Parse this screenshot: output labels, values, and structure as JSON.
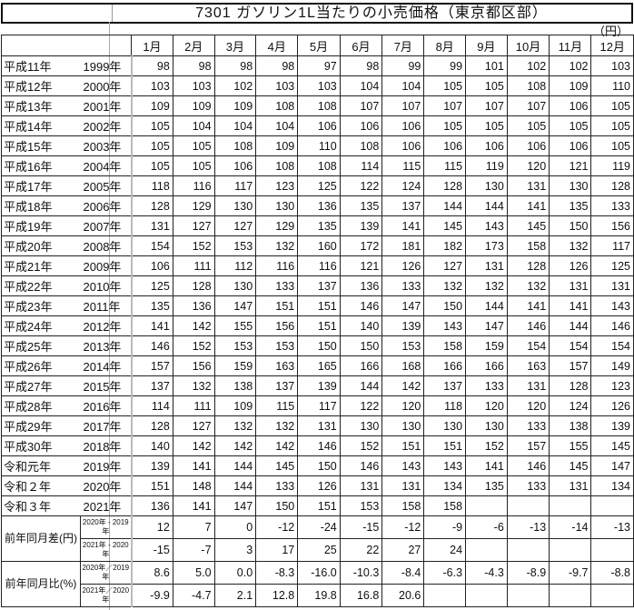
{
  "title": "7301 ガソリン1L当たりの小売価格（東京都区部）",
  "unit": "（円）",
  "months": [
    "1月",
    "2月",
    "3月",
    "4月",
    "5月",
    "6月",
    "7月",
    "8月",
    "9月",
    "10月",
    "11月",
    "12月"
  ],
  "rows": [
    {
      "era": "平成11年",
      "year": "1999年",
      "values": [
        98,
        98,
        98,
        98,
        97,
        98,
        99,
        99,
        101,
        102,
        102,
        103
      ]
    },
    {
      "era": "平成12年",
      "year": "2000年",
      "values": [
        103,
        103,
        102,
        103,
        103,
        104,
        104,
        105,
        105,
        108,
        109,
        110
      ]
    },
    {
      "era": "平成13年",
      "year": "2001年",
      "values": [
        109,
        109,
        109,
        108,
        108,
        107,
        107,
        107,
        107,
        107,
        106,
        105
      ]
    },
    {
      "era": "平成14年",
      "year": "2002年",
      "values": [
        105,
        104,
        104,
        104,
        106,
        106,
        106,
        105,
        105,
        105,
        105,
        105
      ]
    },
    {
      "era": "平成15年",
      "year": "2003年",
      "values": [
        105,
        105,
        108,
        109,
        110,
        108,
        106,
        106,
        106,
        106,
        106,
        105
      ]
    },
    {
      "era": "平成16年",
      "year": "2004年",
      "values": [
        105,
        105,
        106,
        108,
        108,
        114,
        115,
        115,
        119,
        120,
        121,
        119
      ]
    },
    {
      "era": "平成17年",
      "year": "2005年",
      "values": [
        118,
        116,
        117,
        123,
        125,
        122,
        124,
        128,
        130,
        131,
        130,
        128
      ]
    },
    {
      "era": "平成18年",
      "year": "2006年",
      "values": [
        128,
        129,
        130,
        130,
        136,
        135,
        137,
        144,
        144,
        141,
        135,
        133
      ]
    },
    {
      "era": "平成19年",
      "year": "2007年",
      "values": [
        131,
        127,
        127,
        129,
        135,
        139,
        141,
        145,
        143,
        145,
        150,
        156
      ]
    },
    {
      "era": "平成20年",
      "year": "2008年",
      "values": [
        154,
        152,
        153,
        132,
        160,
        172,
        181,
        182,
        173,
        158,
        132,
        117
      ]
    },
    {
      "era": "平成21年",
      "year": "2009年",
      "values": [
        106,
        111,
        112,
        116,
        116,
        121,
        126,
        127,
        131,
        128,
        126,
        125
      ]
    },
    {
      "era": "平成22年",
      "year": "2010年",
      "values": [
        125,
        128,
        130,
        133,
        137,
        136,
        133,
        132,
        132,
        132,
        131,
        131
      ]
    },
    {
      "era": "平成23年",
      "year": "2011年",
      "values": [
        135,
        136,
        147,
        151,
        151,
        146,
        147,
        150,
        144,
        141,
        141,
        143
      ]
    },
    {
      "era": "平成24年",
      "year": "2012年",
      "values": [
        141,
        142,
        155,
        156,
        151,
        140,
        139,
        143,
        147,
        146,
        144,
        146
      ]
    },
    {
      "era": "平成25年",
      "year": "2013年",
      "values": [
        146,
        152,
        153,
        153,
        150,
        150,
        153,
        158,
        159,
        154,
        154,
        154
      ]
    },
    {
      "era": "平成26年",
      "year": "2014年",
      "values": [
        157,
        156,
        159,
        163,
        165,
        166,
        168,
        166,
        166,
        163,
        157,
        149
      ]
    },
    {
      "era": "平成27年",
      "year": "2015年",
      "values": [
        137,
        132,
        138,
        137,
        139,
        144,
        142,
        137,
        133,
        131,
        128,
        123
      ]
    },
    {
      "era": "平成28年",
      "year": "2016年",
      "values": [
        114,
        111,
        109,
        115,
        117,
        122,
        120,
        118,
        120,
        120,
        124,
        126
      ]
    },
    {
      "era": "平成29年",
      "year": "2017年",
      "values": [
        128,
        127,
        132,
        132,
        131,
        130,
        130,
        130,
        130,
        133,
        138,
        139
      ]
    },
    {
      "era": "平成30年",
      "year": "2018年",
      "values": [
        140,
        142,
        142,
        142,
        146,
        152,
        151,
        151,
        152,
        157,
        155,
        145
      ]
    },
    {
      "era": "令和元年",
      "year": "2019年",
      "values": [
        139,
        141,
        144,
        145,
        150,
        146,
        143,
        143,
        141,
        146,
        145,
        147
      ]
    },
    {
      "era": "令和２年",
      "year": "2020年",
      "values": [
        151,
        148,
        144,
        133,
        126,
        131,
        131,
        134,
        135,
        133,
        131,
        134
      ]
    },
    {
      "era": "令和３年",
      "year": "2021年",
      "values": [
        136,
        141,
        147,
        150,
        151,
        153,
        158,
        158,
        null,
        null,
        null,
        null
      ]
    }
  ],
  "diff_group": {
    "label": "前年同月差(円)",
    "rows": [
      {
        "label": "2020年 - 2019年",
        "values": [
          "12",
          "7",
          "0",
          "-12",
          "-24",
          "-15",
          "-12",
          "-9",
          "-6",
          "-13",
          "-14",
          "-13"
        ]
      },
      {
        "label": "2021年 - 2020年",
        "values": [
          "-15",
          "-7",
          "3",
          "17",
          "25",
          "22",
          "27",
          "24",
          "",
          "",
          "",
          ""
        ]
      }
    ]
  },
  "ratio_group": {
    "label": "前年同月比(%)",
    "rows": [
      {
        "label": "2020年／2019年",
        "values": [
          "8.6",
          "5.0",
          "0.0",
          "-8.3",
          "-16.0",
          "-10.3",
          "-8.4",
          "-6.3",
          "-4.3",
          "-8.9",
          "-9.7",
          "-8.8"
        ]
      },
      {
        "label": "2021年／2020年",
        "values": [
          "-9.9",
          "-4.7",
          "2.1",
          "12.8",
          "19.8",
          "16.8",
          "20.6",
          "",
          "",
          "",
          "",
          ""
        ]
      }
    ]
  }
}
